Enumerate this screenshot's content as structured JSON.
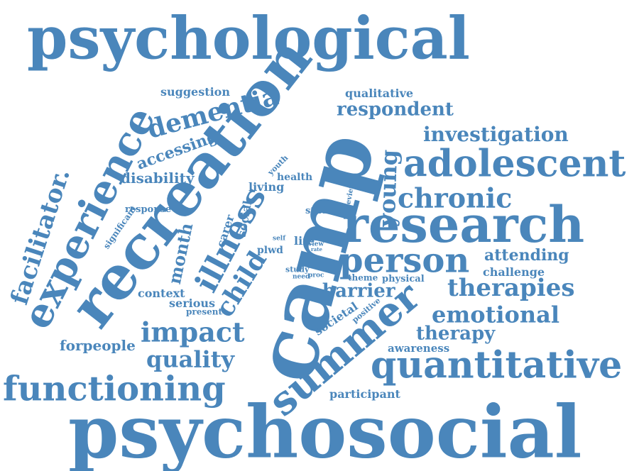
{
  "cloud": {
    "color": "#4a86bb",
    "words": [
      {
        "id": "psychological",
        "text": "psychological"
      },
      {
        "id": "psychosocial",
        "text": "psychosocial"
      },
      {
        "id": "camp",
        "text": "camp"
      },
      {
        "id": "recreation",
        "text": "recreation"
      },
      {
        "id": "experience",
        "text": "experience"
      },
      {
        "id": "research",
        "text": "research"
      },
      {
        "id": "summer",
        "text": "summer"
      },
      {
        "id": "adolescent",
        "text": "adolescent"
      },
      {
        "id": "quantitative",
        "text": "quantitative"
      },
      {
        "id": "functioning",
        "text": "functioning"
      },
      {
        "id": "person",
        "text": "person"
      },
      {
        "id": "illness",
        "text": "illness"
      },
      {
        "id": "chronic",
        "text": "chronic"
      },
      {
        "id": "therapies",
        "text": "therapies"
      },
      {
        "id": "emotional",
        "text": "emotional"
      },
      {
        "id": "impact",
        "text": "impact"
      },
      {
        "id": "dementia",
        "text": "dementia"
      },
      {
        "id": "child",
        "text": "child"
      },
      {
        "id": "facilitator",
        "text": "facilitator."
      },
      {
        "id": "young",
        "text": "young"
      },
      {
        "id": "investigation",
        "text": "investigation"
      },
      {
        "id": "quality",
        "text": "quality"
      },
      {
        "id": "therapy",
        "text": "therapy"
      },
      {
        "id": "respondent",
        "text": "respondent"
      },
      {
        "id": "barrier",
        "text": "barrier"
      },
      {
        "id": "month",
        "text": "month"
      },
      {
        "id": "accessing",
        "text": "accessing"
      },
      {
        "id": "attending",
        "text": "attending"
      },
      {
        "id": "forpeople",
        "text": "forpeople"
      },
      {
        "id": "disability",
        "text": "disability"
      },
      {
        "id": "suggestion",
        "text": "suggestion"
      },
      {
        "id": "qualitative",
        "text": "qualitative"
      },
      {
        "id": "context",
        "text": "context"
      },
      {
        "id": "serious",
        "text": "serious"
      },
      {
        "id": "societal",
        "text": "societal"
      },
      {
        "id": "challenge",
        "text": "challenge"
      },
      {
        "id": "awareness",
        "text": "awareness"
      },
      {
        "id": "participant",
        "text": "participant"
      },
      {
        "id": "living",
        "text": "living"
      },
      {
        "id": "social",
        "text": "social"
      },
      {
        "id": "carer",
        "text": "carer"
      },
      {
        "id": "response",
        "text": "response"
      },
      {
        "id": "significant",
        "text": "significant"
      },
      {
        "id": "health",
        "text": "health"
      },
      {
        "id": "youth",
        "text": "youth"
      },
      {
        "id": "studies",
        "text": "studies"
      },
      {
        "id": "physical",
        "text": "physical"
      },
      {
        "id": "present",
        "text": "present"
      },
      {
        "id": "theme",
        "text": "theme"
      },
      {
        "id": "plwd",
        "text": "plwd"
      },
      {
        "id": "life",
        "text": "life"
      },
      {
        "id": "positive",
        "text": "positive"
      },
      {
        "id": "study",
        "text": "study"
      },
      {
        "id": "review",
        "text": "review"
      },
      {
        "id": "self",
        "text": "self"
      },
      {
        "id": "need",
        "text": "need"
      },
      {
        "id": "view",
        "text": "view"
      },
      {
        "id": "rate",
        "text": "rate"
      },
      {
        "id": "proc",
        "text": "proc"
      }
    ]
  }
}
